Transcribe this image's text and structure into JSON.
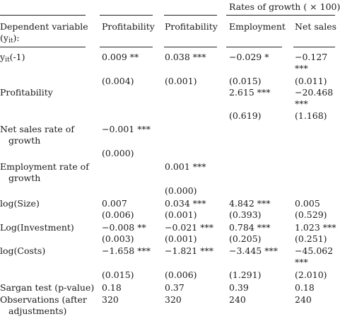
{
  "header": {
    "group_title": "Rates of growth ( × 100)",
    "dep_var_line1": "Dependent variable",
    "dep_var_line2_pre": "(y",
    "dep_var_line2_sub": "it",
    "dep_var_line2_post": "):",
    "col2": "Profitability",
    "col3": "Profitability",
    "col4": "Employment",
    "col5": "Net sales"
  },
  "rows": {
    "ylag": {
      "label_pre": "y",
      "label_sub": "it",
      "label_post": "(-1)",
      "c2": "0.009 **",
      "c3": "0.038 ***",
      "c4": "−0.029 *",
      "c5": "−0.127",
      "c5_stars": "***",
      "se2": "(0.004)",
      "se3": "(0.001)",
      "se4": "(0.015)",
      "se5": "(0.011)"
    },
    "profitability": {
      "label": "Profitability",
      "c4": "2.615 ***",
      "c5": "−20.468",
      "c5_stars": "***",
      "se4": "(0.619)",
      "se5": "(1.168)"
    },
    "netsales": {
      "label1": "Net sales rate of",
      "label2": "growth",
      "c2": "−0.001 ***",
      "se2": "(0.000)"
    },
    "employment": {
      "label1": "Employment rate of",
      "label2": "growth",
      "c3": "0.001 ***",
      "se3": "(0.000)"
    },
    "size": {
      "label": "log(Size)",
      "c2": "0.007",
      "c3": "0.034 ***",
      "c4": "4.842 ***",
      "c5": "0.005",
      "se2": "(0.006)",
      "se3": "(0.001)",
      "se4": "(0.393)",
      "se5": "(0.529)"
    },
    "investment": {
      "label": "Log(Investment)",
      "c2": "−0.008 **",
      "c3": "−0.021 ***",
      "c4": "0.784 ***",
      "c5": "1.023 ***",
      "se2": "(0.003)",
      "se3": "(0.001)",
      "se4": "(0.205)",
      "se5": "(0.251)"
    },
    "costs": {
      "label": "log(Costs)",
      "c2": "−1.658 ***",
      "c3": "−1.821 ***",
      "c4": "−3.445 ***",
      "c5": "−45.062",
      "c5_stars": "***",
      "se2": "(0.015)",
      "se3": "(0.006)",
      "se4": "(1.291)",
      "se5": "(2.010)"
    },
    "sargan": {
      "label": "Sargan test (p-value)",
      "c2": "0.18",
      "c3": "0.37",
      "c4": "0.39",
      "c5": "0.18"
    },
    "obs": {
      "label1": "Observations (after",
      "label2": "adjustments)",
      "c2": "320",
      "c3": "320",
      "c4": "240",
      "c5": "240"
    }
  }
}
